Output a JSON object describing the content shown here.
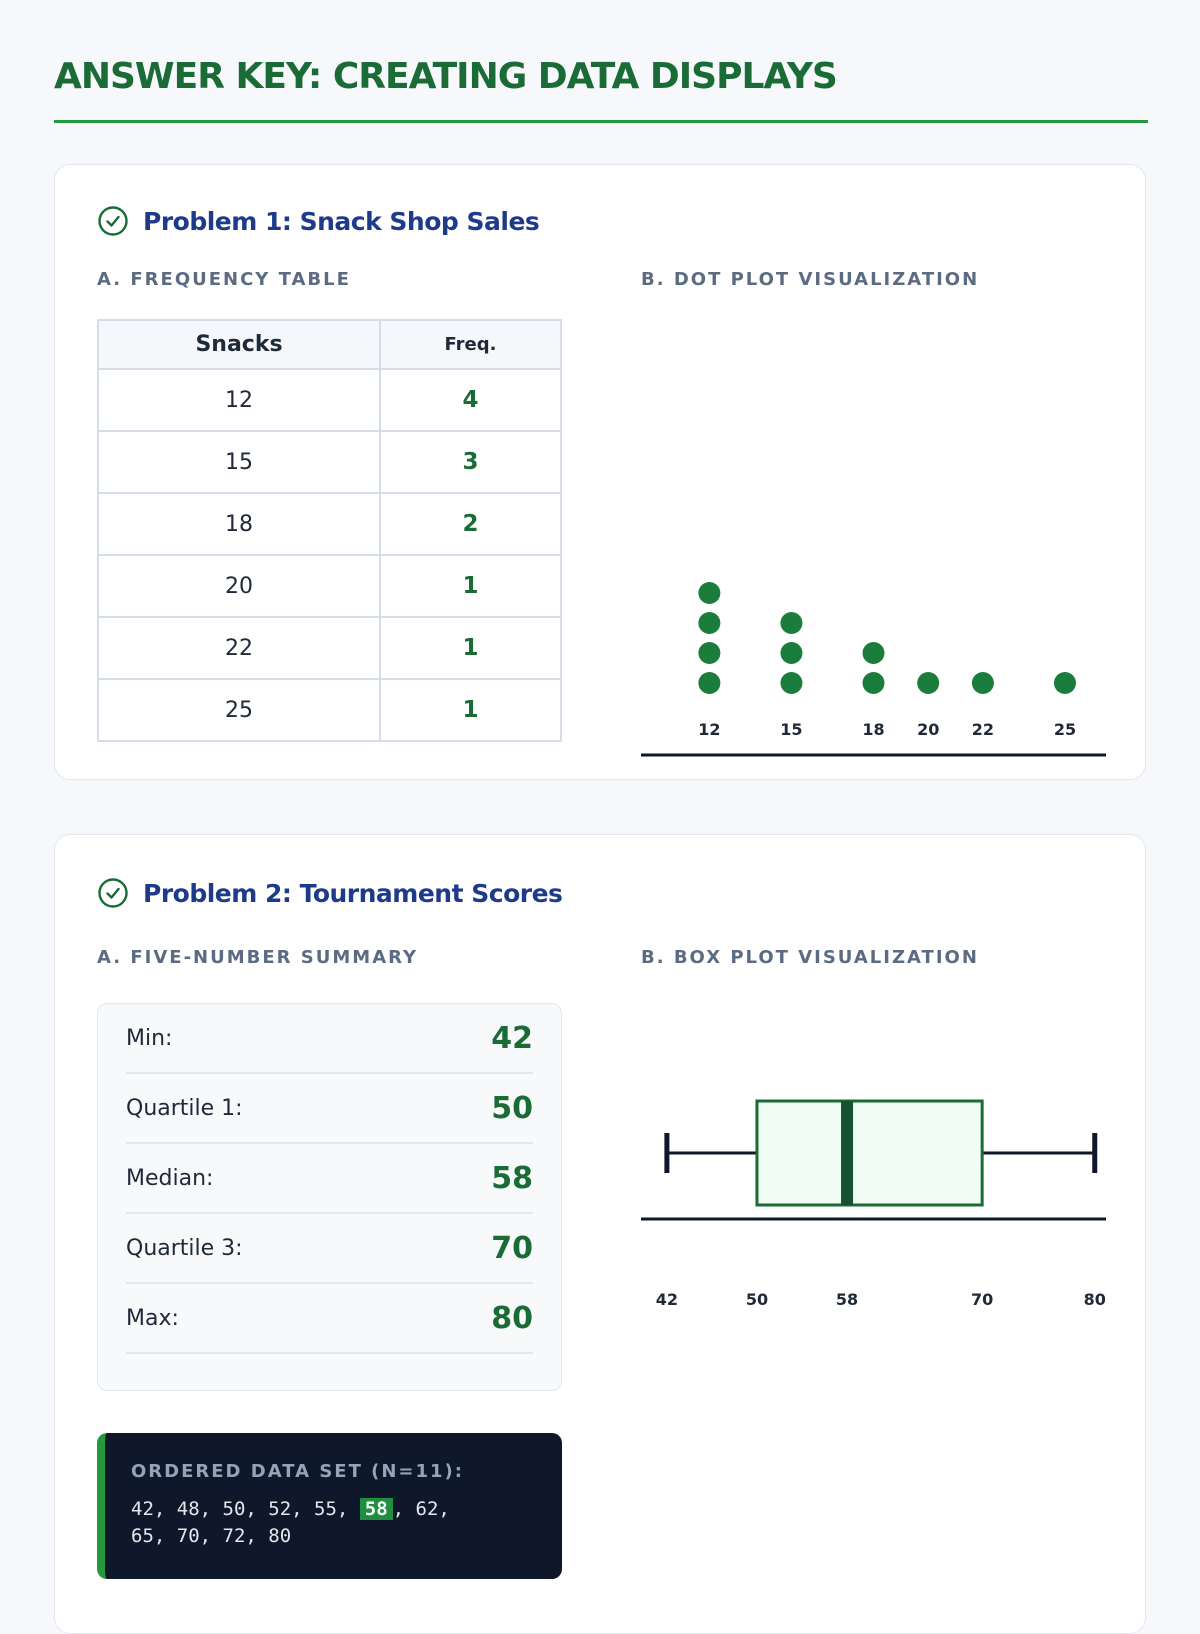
{
  "title": "ANSWER KEY: CREATING DATA DISPLAYS",
  "problem1": {
    "title": "Problem 1: Snack Shop Sales",
    "table_label": "A. FREQUENCY TABLE",
    "plot_label": "B. DOT PLOT VISUALIZATION",
    "headers": [
      "Snacks",
      "Freq."
    ],
    "rows": [
      {
        "snacks": "12",
        "freq": "4"
      },
      {
        "snacks": "15",
        "freq": "3"
      },
      {
        "snacks": "18",
        "freq": "2"
      },
      {
        "snacks": "20",
        "freq": "1"
      },
      {
        "snacks": "22",
        "freq": "1"
      },
      {
        "snacks": "25",
        "freq": "1"
      }
    ]
  },
  "problem2": {
    "title": "Problem 2: Tournament Scores",
    "summary_label": "A. FIVE-NUMBER SUMMARY",
    "plot_label": "B. BOX PLOT VISUALIZATION",
    "summary": [
      {
        "label": "Min:",
        "value": "42"
      },
      {
        "label": "Quartile 1:",
        "value": "50"
      },
      {
        "label": "Median:",
        "value": "58"
      },
      {
        "label": "Quartile 3:",
        "value": "70"
      },
      {
        "label": "Max:",
        "value": "80"
      }
    ],
    "data_set_label": "ORDERED DATA SET (N=11):",
    "data_before": "42, 48, 50, 52, 55, ",
    "data_median": "58",
    "data_after_line1": ", 62,",
    "data_line2": "65, 70, 72, 80"
  },
  "chart_data": [
    {
      "type": "scatter",
      "subtype": "dot-plot",
      "x": [
        12,
        15,
        18,
        20,
        22,
        25
      ],
      "counts": [
        4,
        3,
        2,
        1,
        1,
        1
      ],
      "tick_labels": [
        "12",
        "15",
        "18",
        "20",
        "22",
        "25"
      ],
      "xlim": [
        9.5,
        26.5
      ],
      "color": "#1a7d3c"
    },
    {
      "type": "box",
      "min": 42,
      "q1": 50,
      "median": 58,
      "q3": 70,
      "max": 80,
      "tick_labels": [
        "42",
        "50",
        "58",
        "70",
        "80"
      ],
      "tick_values": [
        42,
        50,
        58,
        70,
        80
      ],
      "xlim": [
        39.7,
        81
      ],
      "colors": {
        "box_fill": "#f0fdf4",
        "box_stroke": "#1a6b35",
        "median": "#14532d",
        "whisker": "#0f172a"
      }
    }
  ]
}
